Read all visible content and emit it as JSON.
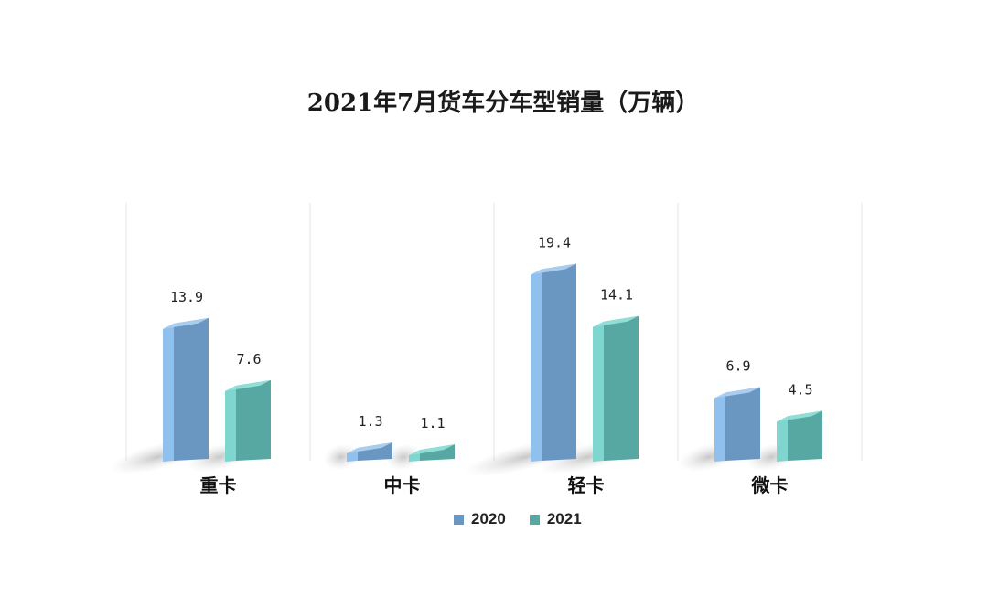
{
  "chart_data": {
    "type": "bar",
    "title": "2021年7月货车分车型销量（万辆）",
    "categories": [
      "重卡",
      "中卡",
      "轻卡",
      "微卡"
    ],
    "series": [
      {
        "name": "2020",
        "values": [
          13.9,
          1.3,
          19.4,
          6.9
        ],
        "value_labels": [
          "13.9",
          "1.3",
          "19.4",
          "6.9"
        ],
        "color": "#6a97c1"
      },
      {
        "name": "2021",
        "values": [
          7.6,
          1.1,
          14.1,
          4.5
        ],
        "value_labels": [
          "7.6",
          "1.1",
          "14.1",
          "4.5"
        ],
        "color": "#57a8a2"
      }
    ],
    "ylim": [
      0,
      26
    ],
    "grid": false,
    "legend_position": "bottom",
    "style": "3d-column"
  }
}
